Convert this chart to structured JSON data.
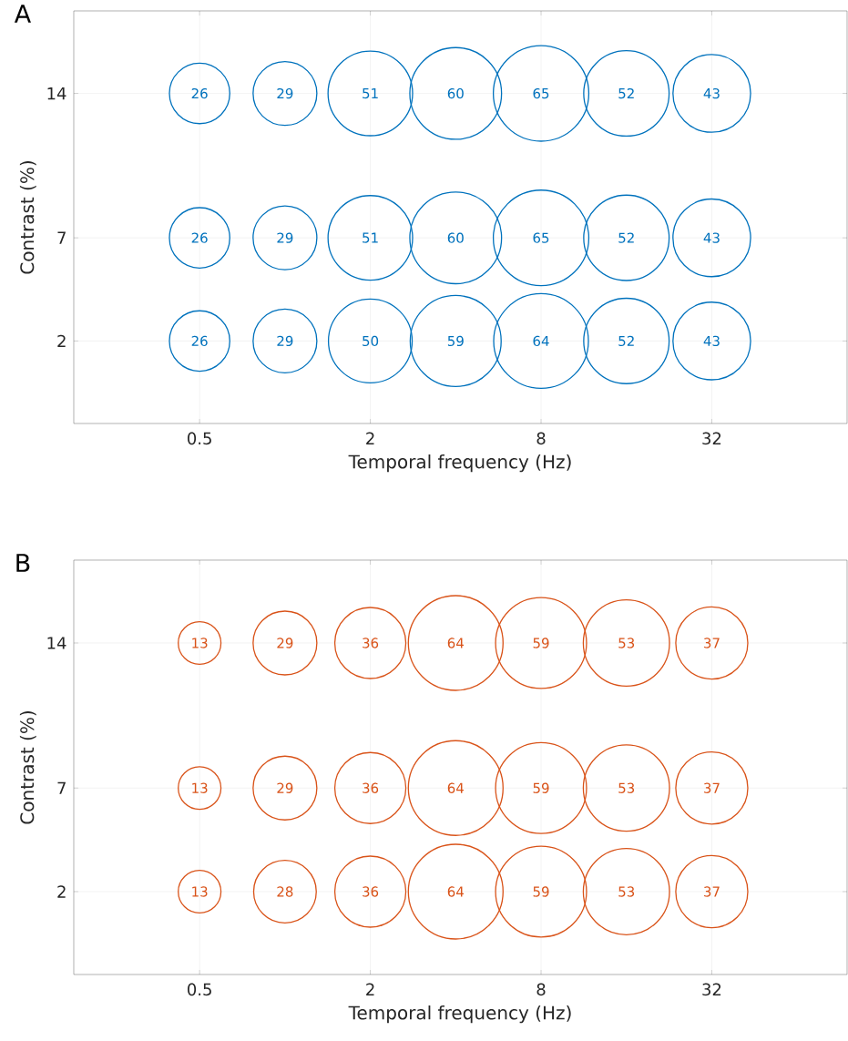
{
  "chart_data": [
    {
      "type": "bubble",
      "title": "A",
      "xlabel": "Temporal frequency (Hz)",
      "ylabel": "Contrast (%)",
      "log": "x",
      "xlim": [
        0.18,
        96
      ],
      "ylim": [
        -2,
        18
      ],
      "xticks": [
        0.5,
        2,
        8,
        32
      ],
      "yticks": [
        2,
        7,
        14
      ],
      "grid": true,
      "series": [
        {
          "color": "#0072bd",
          "x": [
            0.5,
            1,
            2,
            4,
            8,
            16,
            32
          ],
          "values": [
            14,
            14,
            14,
            14,
            14,
            14,
            14
          ],
          "sizes": [
            26,
            29,
            51,
            60,
            65,
            52,
            43
          ],
          "value_labels": [
            "26",
            "29",
            "51",
            "60",
            "65",
            "52",
            "43"
          ]
        },
        {
          "color": "#0072bd",
          "x": [
            0.5,
            1,
            2,
            4,
            8,
            16,
            32
          ],
          "values": [
            7,
            7,
            7,
            7,
            7,
            7,
            7
          ],
          "sizes": [
            26,
            29,
            51,
            60,
            65,
            52,
            43
          ],
          "value_labels": [
            "26",
            "29",
            "51",
            "60",
            "65",
            "52",
            "43"
          ]
        },
        {
          "color": "#0072bd",
          "x": [
            0.5,
            1,
            2,
            4,
            8,
            16,
            32
          ],
          "values": [
            2,
            2,
            2,
            2,
            2,
            2,
            2
          ],
          "sizes": [
            26,
            29,
            50,
            59,
            64,
            52,
            43
          ],
          "value_labels": [
            "26",
            "29",
            "50",
            "59",
            "64",
            "52",
            "43"
          ]
        }
      ]
    },
    {
      "type": "bubble",
      "title": "B",
      "xlabel": "Temporal frequency (Hz)",
      "ylabel": "Contrast (%)",
      "log": "x",
      "xlim": [
        0.18,
        96
      ],
      "ylim": [
        -2,
        18
      ],
      "xticks": [
        0.5,
        2,
        8,
        32
      ],
      "yticks": [
        2,
        7,
        14
      ],
      "grid": true,
      "series": [
        {
          "color": "#d95319",
          "x": [
            0.5,
            1,
            2,
            4,
            8,
            16,
            32
          ],
          "values": [
            14,
            14,
            14,
            14,
            14,
            14,
            14
          ],
          "sizes": [
            13,
            29,
            36,
            64,
            59,
            53,
            37
          ],
          "value_labels": [
            "13",
            "29",
            "36",
            "64",
            "59",
            "53",
            "37"
          ]
        },
        {
          "color": "#d95319",
          "x": [
            0.5,
            1,
            2,
            4,
            8,
            16,
            32
          ],
          "values": [
            7,
            7,
            7,
            7,
            7,
            7,
            7
          ],
          "sizes": [
            13,
            29,
            36,
            64,
            59,
            53,
            37
          ],
          "value_labels": [
            "13",
            "29",
            "36",
            "64",
            "59",
            "53",
            "37"
          ]
        },
        {
          "color": "#d95319",
          "x": [
            0.5,
            1,
            2,
            4,
            8,
            16,
            32
          ],
          "values": [
            2,
            2,
            2,
            2,
            2,
            2,
            2
          ],
          "sizes": [
            13,
            28,
            36,
            64,
            59,
            53,
            37
          ],
          "value_labels": [
            "13",
            "28",
            "36",
            "64",
            "59",
            "53",
            "37"
          ]
        }
      ]
    }
  ]
}
